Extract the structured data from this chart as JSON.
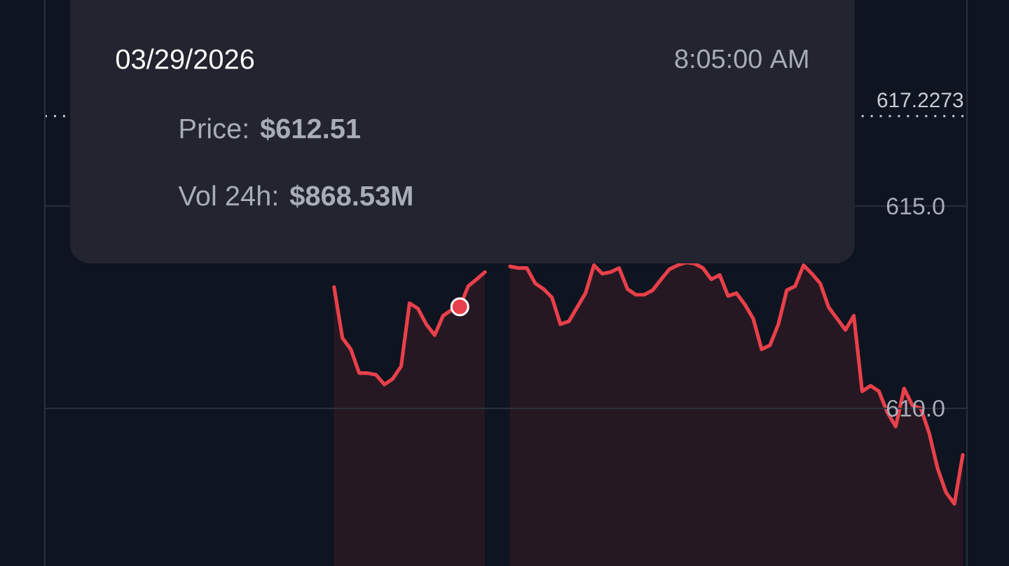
{
  "chart_data": {
    "type": "area",
    "categories": [
      null,
      null,
      null,
      null,
      null,
      null,
      null,
      null,
      null,
      null,
      null,
      null,
      null,
      null,
      null,
      null,
      null,
      null,
      null,
      null,
      null,
      null,
      null,
      null,
      null,
      null,
      null,
      null,
      null,
      null,
      null,
      null,
      null,
      null,
      null,
      null,
      null,
      null,
      null,
      null,
      null,
      null,
      null,
      null,
      null,
      null,
      null,
      null,
      null,
      null,
      null,
      null,
      null,
      null,
      null,
      null,
      null,
      null,
      null,
      null,
      null,
      null,
      null,
      null,
      null,
      null,
      null,
      null,
      null,
      null,
      null,
      null,
      null,
      null,
      null,
      null,
      null,
      null,
      null,
      null,
      null,
      null,
      null,
      null,
      null,
      null,
      null,
      null,
      null,
      null,
      null,
      null,
      null,
      null,
      null,
      null,
      null,
      null,
      null,
      null,
      null,
      null,
      null,
      null,
      null,
      null,
      null,
      null,
      null,
      null
    ],
    "series": [
      {
        "color": "#e8404a",
        "values": [
          null,
          null,
          null,
          null,
          null,
          null,
          null,
          null,
          null,
          null,
          null,
          null,
          null,
          null,
          null,
          null,
          null,
          null,
          null,
          null,
          null,
          null,
          null,
          null,
          null,
          null,
          null,
          null,
          null,
          null,
          null,
          null,
          null,
          null,
          613.0,
          611.74,
          611.46,
          610.87,
          610.87,
          610.83,
          610.59,
          610.73,
          611.04,
          612.6,
          612.47,
          612.08,
          611.81,
          612.29,
          612.43,
          612.51,
          613.02,
          613.19,
          613.37,
          null,
          null,
          613.51,
          613.47,
          613.47,
          613.09,
          612.95,
          612.74,
          612.08,
          612.15,
          612.5,
          612.85,
          613.54,
          613.33,
          613.37,
          613.47,
          612.95,
          612.81,
          612.81,
          612.92,
          613.19,
          613.44,
          613.54,
          613.61,
          613.58,
          613.47,
          613.19,
          613.3,
          612.78,
          612.85,
          612.57,
          612.22,
          611.46,
          611.56,
          612.08,
          612.92,
          613.02,
          613.54,
          613.33,
          613.09,
          612.5,
          612.22,
          611.94,
          612.29,
          610.42,
          610.56,
          610.42,
          609.9,
          609.55,
          610.49,
          610.07,
          610.0,
          609.38,
          608.51,
          607.92,
          607.64,
          608.85
        ]
      },
      {
        "type": "scatter",
        "color": "#e8404a",
        "marker": "circle",
        "values": [
          null,
          null,
          null,
          null,
          null,
          null,
          null,
          null,
          null,
          null,
          null,
          null,
          null,
          null,
          null,
          null,
          null,
          null,
          null,
          null,
          null,
          null,
          null,
          null,
          null,
          null,
          null,
          null,
          null,
          null,
          null,
          null,
          null,
          null,
          null,
          null,
          null,
          null,
          null,
          null,
          null,
          null,
          null,
          null,
          null,
          null,
          null,
          null,
          null,
          612.51,
          null,
          null,
          null,
          null,
          null,
          null,
          null,
          null,
          null,
          null,
          null,
          null,
          null,
          null,
          null,
          null,
          null,
          null,
          null,
          null,
          null,
          null,
          null,
          null,
          null,
          null,
          null,
          null,
          null,
          null,
          null,
          null,
          null,
          null,
          null,
          null,
          null,
          null,
          null,
          null,
          null,
          null,
          null,
          null,
          null,
          null,
          null,
          null,
          null,
          null,
          null,
          null,
          null,
          null,
          null,
          null,
          null,
          null,
          null,
          null
        ]
      }
    ],
    "ylim": [
      606.1,
      620.1
    ],
    "yticks": [
      {
        "value": 610,
        "label": "610.0"
      },
      {
        "value": 615,
        "label": "615.0"
      }
    ],
    "grid": "y",
    "ref_lines": [
      {
        "axis": "y",
        "value": 617.2273,
        "label": "617.2273",
        "line_style": "dotted",
        "color": "#c8ccd4"
      }
    ],
    "annotations": [
      "03/29/2026",
      "8:05:00 AM",
      "Price: **$612.51**",
      "Vol 24h: **$868.53M**"
    ]
  }
}
